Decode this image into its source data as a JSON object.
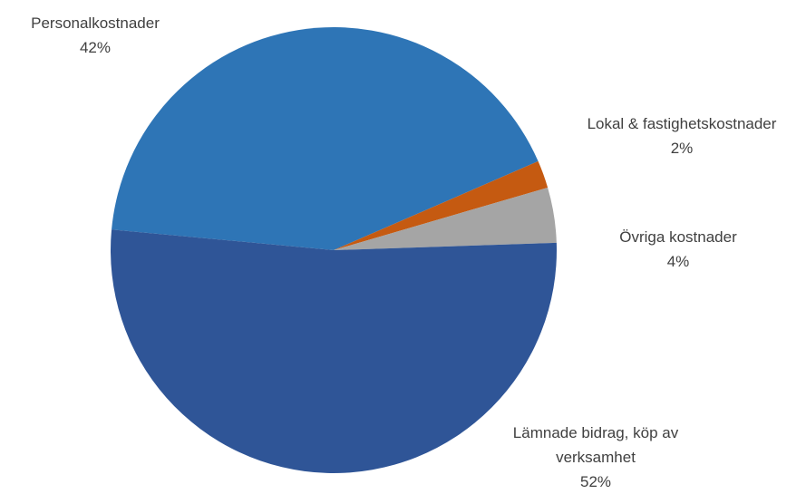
{
  "chart_data": {
    "type": "pie",
    "categories": [
      "Personalkostnader",
      "Lokal & fastighetskostnader",
      "Övriga kostnader",
      "Lämnade bidrag, köp av verksamhet"
    ],
    "values": [
      42,
      2,
      4,
      52
    ],
    "value_labels": [
      "42%",
      "2%",
      "4%",
      "52%"
    ],
    "colors": [
      "#2E75B6",
      "#C55A11",
      "#A5A5A5",
      "#2F5597"
    ]
  }
}
